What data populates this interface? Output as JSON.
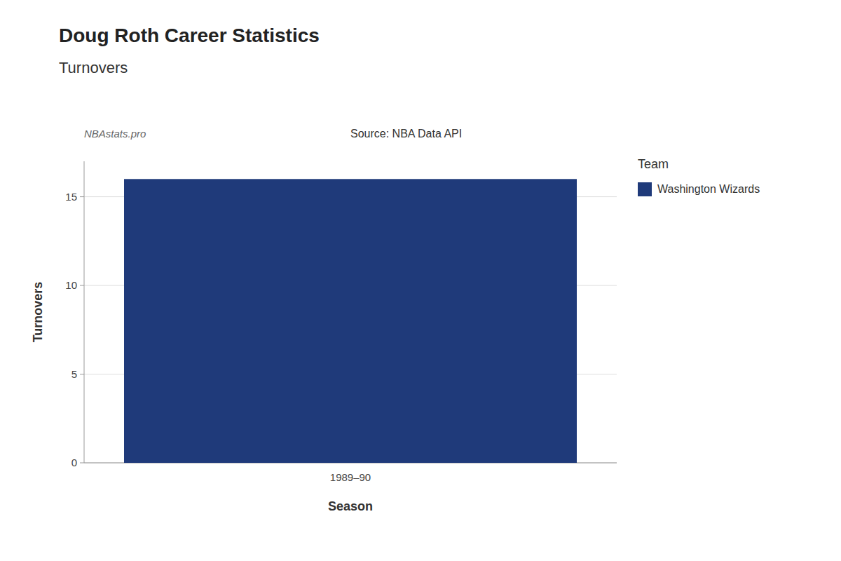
{
  "chart_data": {
    "type": "bar",
    "title": "Doug Roth Career Statistics",
    "subtitle": "Turnovers",
    "annotations": [
      "NBAstats.pro",
      "Source: NBA Data API"
    ],
    "categories": [
      "1989–90"
    ],
    "series": [
      {
        "name": "Washington Wizards",
        "color": "#1F3A7A",
        "values": [
          16
        ]
      }
    ],
    "legend_title": "Team",
    "legend": "right",
    "x_label": "Season",
    "y_label": "Turnovers",
    "ylim": [
      0,
      17
    ],
    "yticks": [
      0,
      5,
      10,
      15
    ],
    "grid": true
  }
}
